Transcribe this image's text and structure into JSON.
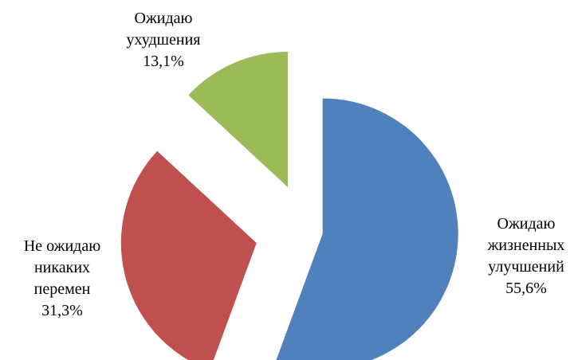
{
  "chart_data": {
    "type": "pie",
    "categories": [
      "Ожидаю жизненных улучшений",
      "Не ожидаю никаких перемен",
      "Ожидаю ухудшения"
    ],
    "values": [
      55.6,
      31.3,
      13.1
    ],
    "value_labels": [
      "55,6%",
      "31,3%",
      "13,1%"
    ],
    "colors": [
      "#4f81bd",
      "#c0504d",
      "#9bbb59"
    ]
  }
}
